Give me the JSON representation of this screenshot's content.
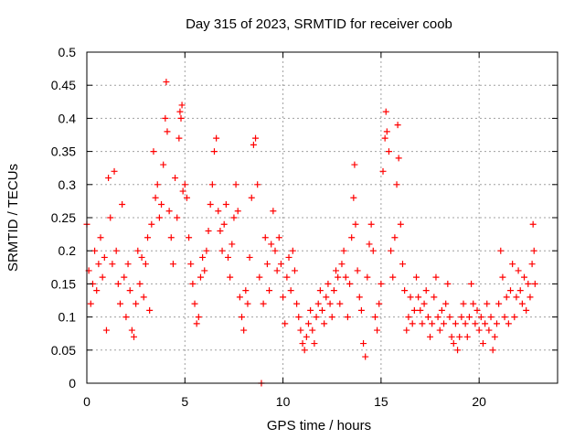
{
  "chart_data": {
    "type": "scatter",
    "title": "Day 315 of 2023, SRMTID for receiver coob",
    "xlabel": "GPS time / hours",
    "ylabel": "SRMTID / TECUs",
    "xlim": [
      0,
      24
    ],
    "ylim": [
      0,
      0.5
    ],
    "x_ticks": [
      0,
      5,
      10,
      15,
      20
    ],
    "x_tick_labels": [
      "0",
      "5",
      "10",
      "15",
      "20"
    ],
    "y_ticks": [
      0,
      0.05,
      0.1,
      0.15,
      0.2,
      0.25,
      0.3,
      0.35,
      0.4,
      0.45,
      0.5
    ],
    "y_tick_labels": [
      "0",
      "0.05",
      "0.1",
      "0.15",
      "0.2",
      "0.25",
      "0.3",
      "0.35",
      "0.4",
      "0.45",
      "0.5"
    ],
    "grid": true,
    "marker": "+",
    "color": "#ff0000",
    "series": [
      {
        "name": "SRMTID",
        "points": [
          [
            0.0,
            0.24
          ],
          [
            0.1,
            0.17
          ],
          [
            0.2,
            0.12
          ],
          [
            0.3,
            0.15
          ],
          [
            0.4,
            0.2
          ],
          [
            0.5,
            0.14
          ],
          [
            0.6,
            0.18
          ],
          [
            0.7,
            0.22
          ],
          [
            0.8,
            0.16
          ],
          [
            0.9,
            0.19
          ],
          [
            1.0,
            0.08
          ],
          [
            1.1,
            0.31
          ],
          [
            1.2,
            0.25
          ],
          [
            1.3,
            0.18
          ],
          [
            1.4,
            0.32
          ],
          [
            1.5,
            0.2
          ],
          [
            1.6,
            0.15
          ],
          [
            1.7,
            0.12
          ],
          [
            1.8,
            0.27
          ],
          [
            1.9,
            0.16
          ],
          [
            2.0,
            0.1
          ],
          [
            2.1,
            0.18
          ],
          [
            2.2,
            0.14
          ],
          [
            2.3,
            0.08
          ],
          [
            2.4,
            0.07
          ],
          [
            2.5,
            0.12
          ],
          [
            2.6,
            0.2
          ],
          [
            2.7,
            0.15
          ],
          [
            2.8,
            0.19
          ],
          [
            2.9,
            0.13
          ],
          [
            3.0,
            0.18
          ],
          [
            3.1,
            0.22
          ],
          [
            3.2,
            0.11
          ],
          [
            3.3,
            0.24
          ],
          [
            3.4,
            0.35
          ],
          [
            3.5,
            0.28
          ],
          [
            3.6,
            0.3
          ],
          [
            3.7,
            0.25
          ],
          [
            3.8,
            0.27
          ],
          [
            3.9,
            0.33
          ],
          [
            4.0,
            0.4
          ],
          [
            4.05,
            0.455
          ],
          [
            4.1,
            0.38
          ],
          [
            4.2,
            0.26
          ],
          [
            4.3,
            0.22
          ],
          [
            4.4,
            0.18
          ],
          [
            4.5,
            0.31
          ],
          [
            4.6,
            0.25
          ],
          [
            4.7,
            0.37
          ],
          [
            4.75,
            0.41
          ],
          [
            4.8,
            0.4
          ],
          [
            4.85,
            0.42
          ],
          [
            4.9,
            0.29
          ],
          [
            5.0,
            0.3
          ],
          [
            5.1,
            0.28
          ],
          [
            5.2,
            0.22
          ],
          [
            5.3,
            0.18
          ],
          [
            5.4,
            0.15
          ],
          [
            5.5,
            0.12
          ],
          [
            5.6,
            0.09
          ],
          [
            5.7,
            0.1
          ],
          [
            5.8,
            0.16
          ],
          [
            5.9,
            0.19
          ],
          [
            6.0,
            0.17
          ],
          [
            6.1,
            0.2
          ],
          [
            6.2,
            0.23
          ],
          [
            6.3,
            0.27
          ],
          [
            6.4,
            0.3
          ],
          [
            6.5,
            0.35
          ],
          [
            6.6,
            0.37
          ],
          [
            6.7,
            0.26
          ],
          [
            6.8,
            0.23
          ],
          [
            6.9,
            0.2
          ],
          [
            7.0,
            0.24
          ],
          [
            7.1,
            0.27
          ],
          [
            7.2,
            0.19
          ],
          [
            7.3,
            0.16
          ],
          [
            7.4,
            0.21
          ],
          [
            7.5,
            0.25
          ],
          [
            7.6,
            0.3
          ],
          [
            7.7,
            0.26
          ],
          [
            7.8,
            0.13
          ],
          [
            7.9,
            0.1
          ],
          [
            8.0,
            0.08
          ],
          [
            8.1,
            0.14
          ],
          [
            8.2,
            0.12
          ],
          [
            8.3,
            0.19
          ],
          [
            8.4,
            0.28
          ],
          [
            8.5,
            0.36
          ],
          [
            8.6,
            0.37
          ],
          [
            8.7,
            0.3
          ],
          [
            8.8,
            0.16
          ],
          [
            8.9,
            0.0
          ],
          [
            9.0,
            0.12
          ],
          [
            9.1,
            0.22
          ],
          [
            9.2,
            0.18
          ],
          [
            9.3,
            0.14
          ],
          [
            9.4,
            0.21
          ],
          [
            9.5,
            0.26
          ],
          [
            9.6,
            0.2
          ],
          [
            9.7,
            0.17
          ],
          [
            9.8,
            0.22
          ],
          [
            9.9,
            0.18
          ],
          [
            10.0,
            0.13
          ],
          [
            10.1,
            0.09
          ],
          [
            10.2,
            0.16
          ],
          [
            10.3,
            0.19
          ],
          [
            10.4,
            0.14
          ],
          [
            10.5,
            0.2
          ],
          [
            10.6,
            0.17
          ],
          [
            10.7,
            0.12
          ],
          [
            10.8,
            0.1
          ],
          [
            10.9,
            0.08
          ],
          [
            11.0,
            0.06
          ],
          [
            11.1,
            0.05
          ],
          [
            11.2,
            0.07
          ],
          [
            11.3,
            0.09
          ],
          [
            11.4,
            0.11
          ],
          [
            11.5,
            0.08
          ],
          [
            11.6,
            0.06
          ],
          [
            11.7,
            0.1
          ],
          [
            11.8,
            0.12
          ],
          [
            11.9,
            0.14
          ],
          [
            12.0,
            0.11
          ],
          [
            12.1,
            0.09
          ],
          [
            12.2,
            0.13
          ],
          [
            12.3,
            0.15
          ],
          [
            12.4,
            0.12
          ],
          [
            12.5,
            0.1
          ],
          [
            12.6,
            0.14
          ],
          [
            12.7,
            0.17
          ],
          [
            12.8,
            0.16
          ],
          [
            12.9,
            0.12
          ],
          [
            13.0,
            0.18
          ],
          [
            13.1,
            0.2
          ],
          [
            13.2,
            0.16
          ],
          [
            13.3,
            0.1
          ],
          [
            13.4,
            0.15
          ],
          [
            13.5,
            0.22
          ],
          [
            13.6,
            0.28
          ],
          [
            13.65,
            0.33
          ],
          [
            13.7,
            0.24
          ],
          [
            13.8,
            0.17
          ],
          [
            13.9,
            0.13
          ],
          [
            14.0,
            0.11
          ],
          [
            14.1,
            0.06
          ],
          [
            14.2,
            0.04
          ],
          [
            14.3,
            0.16
          ],
          [
            14.4,
            0.21
          ],
          [
            14.5,
            0.24
          ],
          [
            14.6,
            0.2
          ],
          [
            14.7,
            0.1
          ],
          [
            14.8,
            0.08
          ],
          [
            14.9,
            0.12
          ],
          [
            15.0,
            0.15
          ],
          [
            15.1,
            0.32
          ],
          [
            15.2,
            0.37
          ],
          [
            15.25,
            0.41
          ],
          [
            15.3,
            0.38
          ],
          [
            15.4,
            0.35
          ],
          [
            15.5,
            0.2
          ],
          [
            15.6,
            0.16
          ],
          [
            15.7,
            0.22
          ],
          [
            15.8,
            0.3
          ],
          [
            15.85,
            0.39
          ],
          [
            15.9,
            0.34
          ],
          [
            16.0,
            0.24
          ],
          [
            16.1,
            0.18
          ],
          [
            16.2,
            0.14
          ],
          [
            16.3,
            0.08
          ],
          [
            16.4,
            0.1
          ],
          [
            16.5,
            0.13
          ],
          [
            16.6,
            0.09
          ],
          [
            16.7,
            0.11
          ],
          [
            16.8,
            0.16
          ],
          [
            16.9,
            0.13
          ],
          [
            17.0,
            0.11
          ],
          [
            17.1,
            0.09
          ],
          [
            17.2,
            0.12
          ],
          [
            17.3,
            0.14
          ],
          [
            17.4,
            0.1
          ],
          [
            17.5,
            0.07
          ],
          [
            17.6,
            0.09
          ],
          [
            17.7,
            0.13
          ],
          [
            17.8,
            0.16
          ],
          [
            17.9,
            0.1
          ],
          [
            18.0,
            0.08
          ],
          [
            18.1,
            0.11
          ],
          [
            18.2,
            0.09
          ],
          [
            18.3,
            0.12
          ],
          [
            18.4,
            0.15
          ],
          [
            18.5,
            0.1
          ],
          [
            18.6,
            0.07
          ],
          [
            18.7,
            0.06
          ],
          [
            18.8,
            0.09
          ],
          [
            18.9,
            0.05
          ],
          [
            19.0,
            0.07
          ],
          [
            19.1,
            0.1
          ],
          [
            19.2,
            0.12
          ],
          [
            19.3,
            0.09
          ],
          [
            19.4,
            0.07
          ],
          [
            19.5,
            0.1
          ],
          [
            19.6,
            0.15
          ],
          [
            19.7,
            0.12
          ],
          [
            19.8,
            0.09
          ],
          [
            19.9,
            0.11
          ],
          [
            20.0,
            0.08
          ],
          [
            20.1,
            0.1
          ],
          [
            20.2,
            0.06
          ],
          [
            20.3,
            0.09
          ],
          [
            20.4,
            0.12
          ],
          [
            20.5,
            0.08
          ],
          [
            20.6,
            0.1
          ],
          [
            20.7,
            0.05
          ],
          [
            20.8,
            0.07
          ],
          [
            20.9,
            0.09
          ],
          [
            21.0,
            0.12
          ],
          [
            21.1,
            0.2
          ],
          [
            21.2,
            0.16
          ],
          [
            21.3,
            0.1
          ],
          [
            21.4,
            0.13
          ],
          [
            21.5,
            0.09
          ],
          [
            21.6,
            0.14
          ],
          [
            21.7,
            0.18
          ],
          [
            21.8,
            0.1
          ],
          [
            21.9,
            0.13
          ],
          [
            22.0,
            0.17
          ],
          [
            22.1,
            0.14
          ],
          [
            22.2,
            0.12
          ],
          [
            22.3,
            0.16
          ],
          [
            22.4,
            0.11
          ],
          [
            22.5,
            0.15
          ],
          [
            22.6,
            0.13
          ],
          [
            22.7,
            0.18
          ],
          [
            22.75,
            0.24
          ],
          [
            22.8,
            0.2
          ],
          [
            22.85,
            0.15
          ]
        ]
      }
    ]
  }
}
